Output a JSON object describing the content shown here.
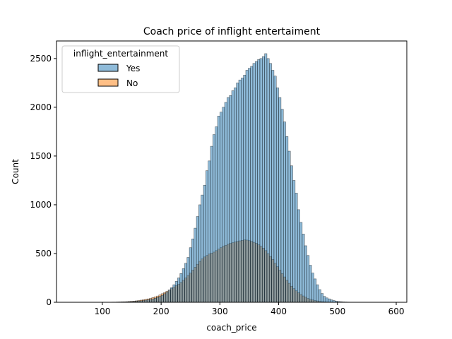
{
  "chart_data": {
    "type": "histogram",
    "title": "Coach price of inflight entertaiment",
    "xlabel": "coach_price",
    "ylabel": "Count",
    "xlim": [
      22,
      618
    ],
    "ylim": [
      0,
      2680
    ],
    "xticks": [
      100,
      200,
      300,
      400,
      500,
      600
    ],
    "yticks": [
      0,
      500,
      1000,
      1500,
      2000,
      2500
    ],
    "grid": false,
    "legend": {
      "title": "inflight_entertainment",
      "placement": "top-left"
    },
    "bin_width": 4,
    "bin_start": 44,
    "series": [
      {
        "name": "Yes",
        "color": "#1f77b4",
        "alpha": 0.5,
        "values": [
          1,
          1,
          1,
          1,
          1,
          1,
          1,
          1,
          1,
          1,
          1,
          1,
          1,
          1,
          1,
          1,
          1,
          1,
          2,
          2,
          3,
          3,
          4,
          4,
          5,
          6,
          7,
          9,
          11,
          13,
          15,
          18,
          22,
          26,
          30,
          35,
          42,
          50,
          60,
          72,
          88,
          105,
          125,
          150,
          180,
          215,
          250,
          295,
          345,
          400,
          460,
          560,
          650,
          760,
          880,
          1000,
          1100,
          1200,
          1350,
          1450,
          1600,
          1720,
          1800,
          1910,
          1950,
          2000,
          2050,
          2100,
          2120,
          2170,
          2200,
          2250,
          2280,
          2300,
          2330,
          2380,
          2400,
          2420,
          2450,
          2470,
          2490,
          2500,
          2520,
          2550,
          2500,
          2450,
          2380,
          2320,
          2200,
          2100,
          1980,
          1850,
          1700,
          1550,
          1400,
          1250,
          1120,
          950,
          820,
          700,
          580,
          480,
          380,
          300,
          240,
          180,
          130,
          90,
          60,
          45,
          35,
          25,
          18,
          12,
          8,
          6,
          4,
          3,
          2,
          1,
          1,
          1,
          1
        ]
      },
      {
        "name": "No",
        "color": "#ff7f0e",
        "alpha": 0.5,
        "values": [
          0,
          0,
          0,
          0,
          0,
          0,
          0,
          0,
          0,
          0,
          0,
          0,
          0,
          0,
          0,
          0,
          0,
          0,
          0,
          0,
          2,
          3,
          4,
          5,
          6,
          8,
          10,
          12,
          15,
          18,
          22,
          26,
          30,
          35,
          40,
          48,
          56,
          64,
          75,
          88,
          100,
          112,
          125,
          140,
          155,
          170,
          185,
          205,
          225,
          250,
          275,
          300,
          330,
          360,
          390,
          420,
          445,
          465,
          480,
          495,
          505,
          515,
          530,
          545,
          560,
          575,
          585,
          595,
          605,
          612,
          618,
          625,
          630,
          635,
          640,
          638,
          632,
          625,
          615,
          605,
          590,
          575,
          555,
          530,
          500,
          470,
          440,
          400,
          365,
          330,
          295,
          260,
          225,
          195,
          165,
          140,
          118,
          98,
          80,
          65,
          52,
          40,
          31,
          24,
          18,
          14,
          10,
          7,
          5,
          4,
          3,
          2,
          1,
          1,
          0,
          0,
          0,
          0,
          0,
          0,
          0,
          0
        ]
      }
    ]
  }
}
